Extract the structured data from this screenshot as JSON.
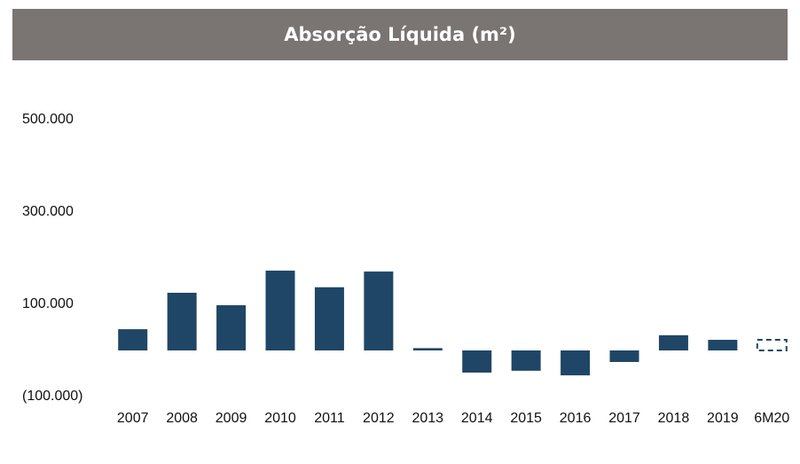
{
  "chart_data": {
    "type": "bar",
    "title": "Absorção Líquida (m²)",
    "categories": [
      "2007",
      "2008",
      "2009",
      "2010",
      "2011",
      "2012",
      "2013",
      "2014",
      "2015",
      "2016",
      "2017",
      "2018",
      "2019",
      "6M20"
    ],
    "values": [
      46000,
      125000,
      98000,
      173000,
      137000,
      171000,
      5000,
      -48000,
      -44000,
      -54000,
      -25000,
      33000,
      23000,
      23000
    ],
    "bar_styles": [
      "solid",
      "solid",
      "solid",
      "solid",
      "solid",
      "solid",
      "solid",
      "solid",
      "solid",
      "solid",
      "solid",
      "solid",
      "solid",
      "dashed"
    ],
    "color": "#1f4666",
    "ylim": [
      -100000,
      500000
    ],
    "yticks": [
      {
        "value": -100000,
        "label": "(100.000)"
      },
      {
        "value": 100000,
        "label": "100.000"
      },
      {
        "value": 300000,
        "label": "300.000"
      },
      {
        "value": 500000,
        "label": "500.000"
      }
    ],
    "grid": false
  }
}
